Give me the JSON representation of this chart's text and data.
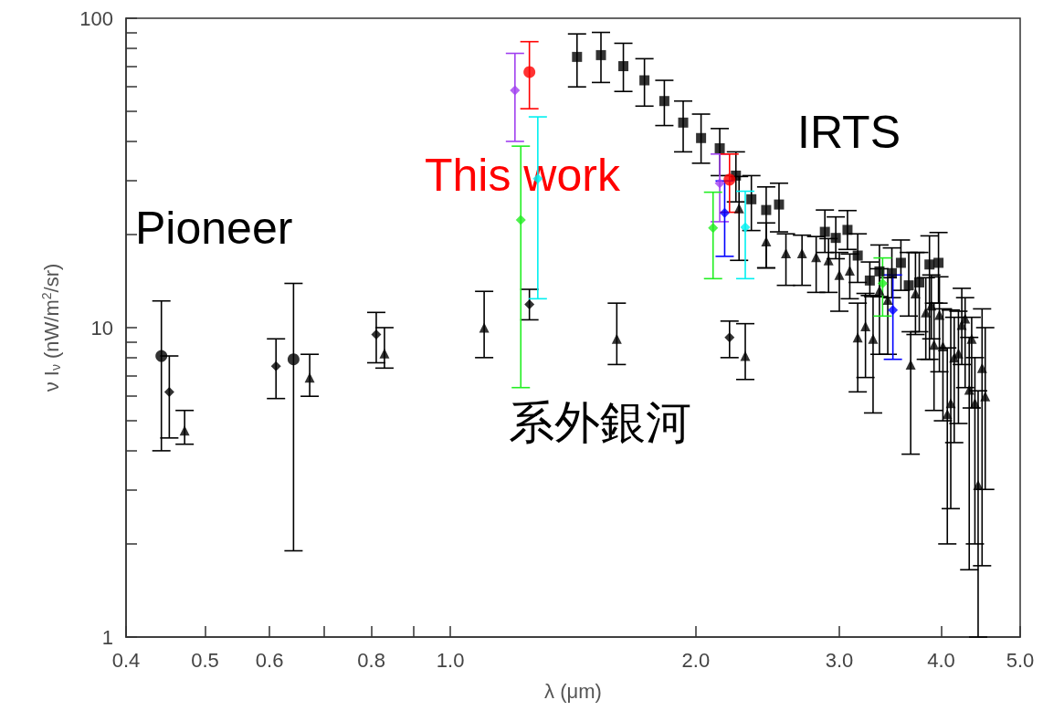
{
  "chart_data": {
    "type": "scatter",
    "xlabel": "λ (μm)",
    "ylabel": "ν I$_{ν}$ (nW/m$^{2}$/sr)",
    "log": "xy",
    "grid": false,
    "xlim": [
      0.4,
      5.0
    ],
    "ylim": [
      1,
      100
    ],
    "xticks": [
      {
        "value": 0.4,
        "label": "0.4"
      },
      {
        "value": 0.5,
        "label": "0.5"
      },
      {
        "value": 0.6,
        "label": "0.6"
      },
      {
        "value": 0.7,
        "label": null
      },
      {
        "value": 0.8,
        "label": "0.8"
      },
      {
        "value": 0.9,
        "label": null
      },
      {
        "value": 1.0,
        "label": "1.0"
      },
      {
        "value": 2.0,
        "label": "2.0"
      },
      {
        "value": 3.0,
        "label": "3.0"
      },
      {
        "value": 4.0,
        "label": "4.0"
      },
      {
        "value": 5.0,
        "label": "5.0"
      }
    ],
    "yticks": [
      1,
      {
        "value": 2,
        "label": null
      },
      {
        "value": 3,
        "label": null
      },
      {
        "value": 4,
        "label": null
      },
      {
        "value": 5,
        "label": null
      },
      {
        "value": 6,
        "label": null
      },
      {
        "value": 7,
        "label": null
      },
      {
        "value": 8,
        "label": null
      },
      {
        "value": 9,
        "label": null
      },
      10,
      {
        "value": 20,
        "label": null
      },
      {
        "value": 30,
        "label": null
      },
      {
        "value": 40,
        "label": null
      },
      {
        "value": 50,
        "label": null
      },
      {
        "value": 60,
        "label": null
      },
      {
        "value": 70,
        "label": null
      },
      {
        "value": 80,
        "label": null
      },
      {
        "value": 90,
        "label": null
      },
      100
    ],
    "annotations": [
      "Pioneer",
      "This work",
      "IRTS",
      "系外銀河"
    ],
    "series": [
      {
        "color": "#000000",
        "marker": "circle",
        "x": [
          0.442,
          0.642
        ],
        "values": [
          8.1,
          7.9
        ],
        "errors": [
          [
            4.0,
            12.2
          ],
          [
            1.9,
            13.9
          ]
        ]
      },
      {
        "color": "#000000",
        "marker": "diamond",
        "x": [
          0.452,
          0.611,
          0.811,
          1.25,
          2.2
        ],
        "values": [
          6.2,
          7.5,
          9.5,
          11.9,
          9.3
        ],
        "errors": [
          [
            4.4,
            8.1
          ],
          [
            5.9,
            9.2
          ],
          [
            7.7,
            11.2
          ],
          [
            10.6,
            13.3
          ],
          [
            8.0,
            10.5
          ]
        ]
      },
      {
        "color": "#000000",
        "marker": "triangle",
        "x": [
          0.472,
          0.672,
          0.83,
          1.1,
          1.6,
          2.3
        ],
        "values": [
          4.65,
          6.9,
          8.25,
          10.0,
          9.2,
          8.1
        ],
        "errors": [
          [
            4.2,
            5.4
          ],
          [
            6.0,
            8.2
          ],
          [
            7.4,
            10.0
          ],
          [
            8.0,
            13.1
          ],
          [
            7.6,
            12.0
          ],
          [
            6.8,
            10.3
          ]
        ]
      },
      {
        "color": "#000000",
        "marker": "square",
        "x": [
          1.43,
          1.53,
          1.63,
          1.73,
          1.83,
          1.93,
          2.03,
          2.14,
          2.24,
          2.34,
          2.44,
          2.53,
          2.88,
          2.97,
          3.07,
          3.16,
          3.27,
          3.36,
          3.48,
          3.57,
          3.65,
          3.76,
          3.87,
          3.97
        ],
        "values": [
          75,
          76,
          70,
          63,
          54,
          46,
          41,
          38,
          31,
          26,
          24,
          25,
          20.4,
          19.5,
          20.7,
          17.1,
          14.2,
          15.2,
          15.0,
          16.2,
          13.7,
          14.0,
          16.0,
          16.2
        ],
        "errors": [
          [
            60,
            89
          ],
          [
            62,
            90
          ],
          [
            58,
            83
          ],
          [
            52,
            74
          ],
          [
            45,
            63
          ],
          [
            37,
            54
          ],
          [
            34,
            49
          ],
          [
            31,
            44
          ],
          [
            25.5,
            37
          ],
          [
            20.6,
            31
          ],
          [
            15.6,
            28.5
          ],
          [
            20.4,
            29.3
          ],
          [
            17.5,
            24.0
          ],
          [
            16.7,
            22.8
          ],
          [
            17.9,
            23.9
          ],
          [
            14.0,
            20.1
          ],
          [
            12.7,
            16.3
          ],
          [
            12.6,
            18.5
          ],
          [
            12.5,
            18.1
          ],
          [
            13.2,
            19.2
          ],
          [
            10.9,
            17.5
          ],
          [
            9.7,
            17.5
          ],
          [
            7.9,
            19.8
          ],
          [
            12.0,
            20.3
          ]
        ]
      },
      {
        "color": "#000000",
        "marker": "triangle",
        "x": [
          2.26,
          2.44,
          2.58,
          2.7,
          2.81,
          2.91,
          3.0,
          3.09,
          3.16,
          3.23,
          3.3,
          3.36,
          3.44,
          3.67,
          3.72,
          3.83,
          3.89,
          3.92,
          3.98,
          4.02,
          4.07,
          4.11,
          4.15,
          4.2,
          4.24,
          4.28,
          4.33,
          4.36,
          4.4,
          4.44,
          4.49,
          4.53
        ],
        "values": [
          24.3,
          19.0,
          17.4,
          17.4,
          16.9,
          16.5,
          14.8,
          15.3,
          9.3,
          10.1,
          9.2,
          13.2,
          12.3,
          7.6,
          12.9,
          11.2,
          11.8,
          8.8,
          11.0,
          8.7,
          5.25,
          5.7,
          8.0,
          8.25,
          10.2,
          10.7,
          6.3,
          9.2,
          5.7,
          3.1,
          7.4,
          6.0
        ],
        "errors": [
          [
            16.5,
            30.8
          ],
          [
            15.6,
            21.8
          ],
          [
            13.7,
            20.1
          ],
          [
            13.7,
            19.9
          ],
          [
            13.0,
            19.7
          ],
          [
            13.0,
            19.4
          ],
          [
            11.3,
            17.5
          ],
          [
            12.4,
            17.3
          ],
          [
            6.2,
            12.0
          ],
          [
            6.9,
            12.9
          ],
          [
            5.3,
            12.6
          ],
          [
            8.2,
            15.5
          ],
          [
            8.2,
            14.5
          ],
          [
            3.9,
            9.7
          ],
          [
            9.5,
            17.5
          ],
          [
            7.9,
            14.5
          ],
          [
            9.2,
            14.8
          ],
          [
            5.4,
            12.0
          ],
          [
            7.2,
            14.6
          ],
          [
            5.0,
            11.5
          ],
          [
            2.0,
            8.6
          ],
          [
            2.6,
            11.4
          ],
          [
            4.25,
            10.8
          ],
          [
            4.9,
            11.3
          ],
          [
            7.6,
            13.4
          ],
          [
            6.4,
            12.5
          ],
          [
            1.65,
            9.3
          ],
          [
            5.5,
            10.8
          ],
          [
            2.0,
            8.0
          ],
          [
            1.0,
            6.25
          ],
          [
            1.7,
            11.5
          ],
          [
            3.0,
            10.0
          ]
        ]
      },
      {
        "color": "#a040f0",
        "marker": "diamond",
        "x": [
          1.2,
          2.14
        ],
        "values": [
          58.5,
          29.3
        ],
        "errors": [
          [
            40,
            77
          ],
          [
            22.0,
            36.4
          ]
        ]
      },
      {
        "color": "#ff0000",
        "marker": "circle",
        "x": [
          1.25,
          2.2
        ],
        "values": [
          67,
          30.1
        ],
        "errors": [
          [
            51,
            84
          ],
          [
            23.6,
            36.4
          ]
        ]
      },
      {
        "color": "#22ee22",
        "marker": "diamond",
        "x": [
          1.22,
          2.1,
          3.39
        ],
        "values": [
          22.3,
          21.0,
          13.9
        ],
        "errors": [
          [
            6.4,
            38.6
          ],
          [
            14.4,
            27.4
          ],
          [
            10.9,
            16.8
          ]
        ]
      },
      {
        "color": "#00f0f0",
        "marker": "diamond",
        "x": [
          1.28,
          2.3
        ],
        "values": [
          30.3,
          21.1
        ],
        "errors": [
          [
            12.4,
            48
          ],
          [
            14.4,
            27.6
          ]
        ]
      },
      {
        "color": "#0000ff",
        "marker": "diamond",
        "x": [
          2.17,
          3.49
        ],
        "values": [
          23.5,
          11.4
        ],
        "errors": [
          [
            17.0,
            29.8
          ],
          [
            7.9,
            14.8
          ]
        ]
      }
    ]
  }
}
